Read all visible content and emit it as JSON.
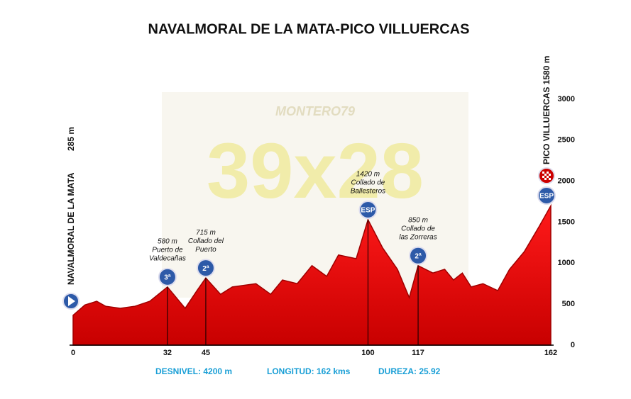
{
  "chart_data": {
    "type": "area",
    "title": "NAVALMORAL DE LA MATA-PICO VILLUERCAS",
    "watermark": [
      "MONTERO79",
      "39x28"
    ],
    "x": [
      0,
      4,
      8,
      11,
      16,
      21,
      26,
      32,
      38,
      42,
      45,
      50,
      54,
      62,
      67,
      71,
      76,
      81,
      86,
      90,
      96,
      100,
      105,
      110,
      114,
      117,
      122,
      126,
      129,
      132,
      135,
      139,
      144,
      148,
      153,
      158,
      162
    ],
    "values": [
      365,
      490,
      535,
      475,
      450,
      475,
      535,
      710,
      450,
      665,
      820,
      620,
      710,
      750,
      620,
      795,
      750,
      970,
      840,
      1100,
      1055,
      1530,
      1185,
      925,
      580,
      970,
      880,
      925,
      795,
      880,
      710,
      750,
      665,
      925,
      1140,
      1445,
      1700
    ],
    "color": "#e60000",
    "xlim": [
      0,
      162
    ],
    "xticks": [
      0,
      32,
      45,
      100,
      117,
      162
    ],
    "ylim": [
      0,
      3000
    ],
    "yticks": [
      0,
      500,
      1000,
      1500,
      2000,
      2500,
      3000
    ],
    "start": {
      "name": "NAVALMORAL DE LA MATA",
      "altitude": "285 m"
    },
    "finish": {
      "name": "PICO VILLUERCAS 1580 m",
      "category": "ESP"
    },
    "climbs": [
      {
        "km": 32,
        "altitude": "580 m",
        "name": [
          "Puerto de",
          "Valdecañas"
        ],
        "category": "3ª"
      },
      {
        "km": 45,
        "altitude": "715 m",
        "name": [
          "Collado del",
          "Puerto"
        ],
        "category": "2ª"
      },
      {
        "km": 100,
        "altitude": "1420 m",
        "name": [
          "Collado de",
          "Ballesteros"
        ],
        "category": "ESP"
      },
      {
        "km": 117,
        "altitude": "850 m",
        "name": [
          "Collado de",
          "las Zorreras"
        ],
        "category": "2ª"
      }
    ],
    "stats": [
      "DESNIVEL:  4200 m",
      "LONGITUD:  162 kms",
      "DUREZA: 25.92"
    ]
  }
}
